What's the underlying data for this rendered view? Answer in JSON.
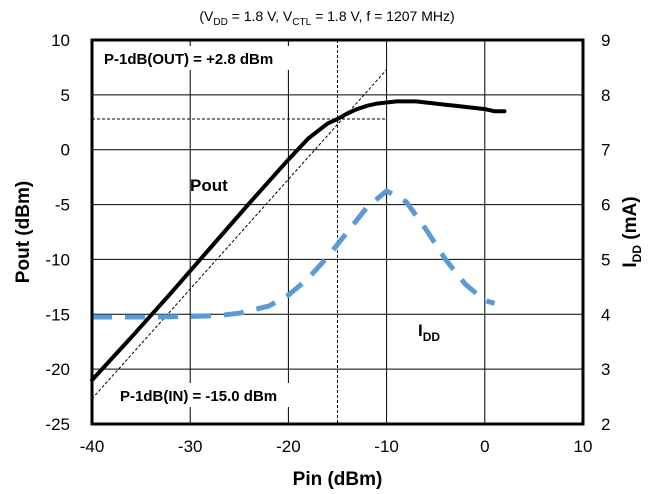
{
  "chart_data": {
    "type": "line",
    "title": {
      "open": "(V",
      "sub1": "DD",
      "p1": " = 1.8 V, V",
      "sub2": "CTL",
      "p2": " = 1.8 V, f = 1207 MHz)"
    },
    "xlabel": "Pin (dBm)",
    "ylabel_left": "Pout (dBm)",
    "ylabel_right": {
      "main": "I",
      "sub": "DD",
      "unit": " (mA)"
    },
    "xlim": [
      -40,
      10
    ],
    "ylim_left": [
      -25,
      10
    ],
    "ylim_right": [
      2,
      9
    ],
    "xticks": [
      "-40",
      "-30",
      "-20",
      "-10",
      "0",
      "10"
    ],
    "yticks_left": [
      "-25",
      "-20",
      "-15",
      "-10",
      "-5",
      "0",
      "5",
      "10"
    ],
    "yticks_right": [
      "2",
      "3",
      "4",
      "5",
      "6",
      "7",
      "8",
      "9"
    ],
    "grid": true,
    "series": [
      {
        "name": "Pout",
        "axis": "left",
        "color": "#000000",
        "style": "solid",
        "x": [
          -40,
          -36,
          -32,
          -28,
          -24,
          -20,
          -18,
          -16,
          -15,
          -14,
          -13,
          -12,
          -11,
          -10,
          -9,
          -8,
          -7,
          -6,
          -5,
          -4,
          -3,
          -2,
          -1,
          0,
          1,
          2
        ],
        "y": [
          -21.0,
          -17.1,
          -13.1,
          -9.0,
          -4.9,
          -0.9,
          1.0,
          2.4,
          2.8,
          3.3,
          3.7,
          4.0,
          4.2,
          4.3,
          4.4,
          4.4,
          4.4,
          4.3,
          4.2,
          4.1,
          4.0,
          3.9,
          3.8,
          3.7,
          3.5,
          3.5
        ]
      },
      {
        "name": "I",
        "name_sub": "DD",
        "axis": "right",
        "color": "#5b9bd5",
        "style": "dashed",
        "x": [
          -40,
          -35,
          -30,
          -27,
          -25,
          -22,
          -20,
          -18,
          -16,
          -14,
          -12,
          -10,
          -8,
          -6,
          -4,
          -2,
          0,
          1
        ],
        "y": [
          3.95,
          3.95,
          3.96,
          3.98,
          4.02,
          4.15,
          4.35,
          4.65,
          5.05,
          5.5,
          5.95,
          6.25,
          6.05,
          5.55,
          5.0,
          4.55,
          4.25,
          4.2
        ]
      }
    ],
    "reference_lines": {
      "ideal_line": {
        "x": [
          -40,
          -10
        ],
        "y": [
          -22.7,
          7.3
        ]
      },
      "p1db_pin": -15.0,
      "p1db_pout": 2.8
    },
    "annotations": {
      "p1db_out": "P-1dB(OUT) = +2.8 dBm",
      "p1db_in": "P-1dB(IN) = -15.0 dBm",
      "pout_label": "Pout"
    }
  }
}
